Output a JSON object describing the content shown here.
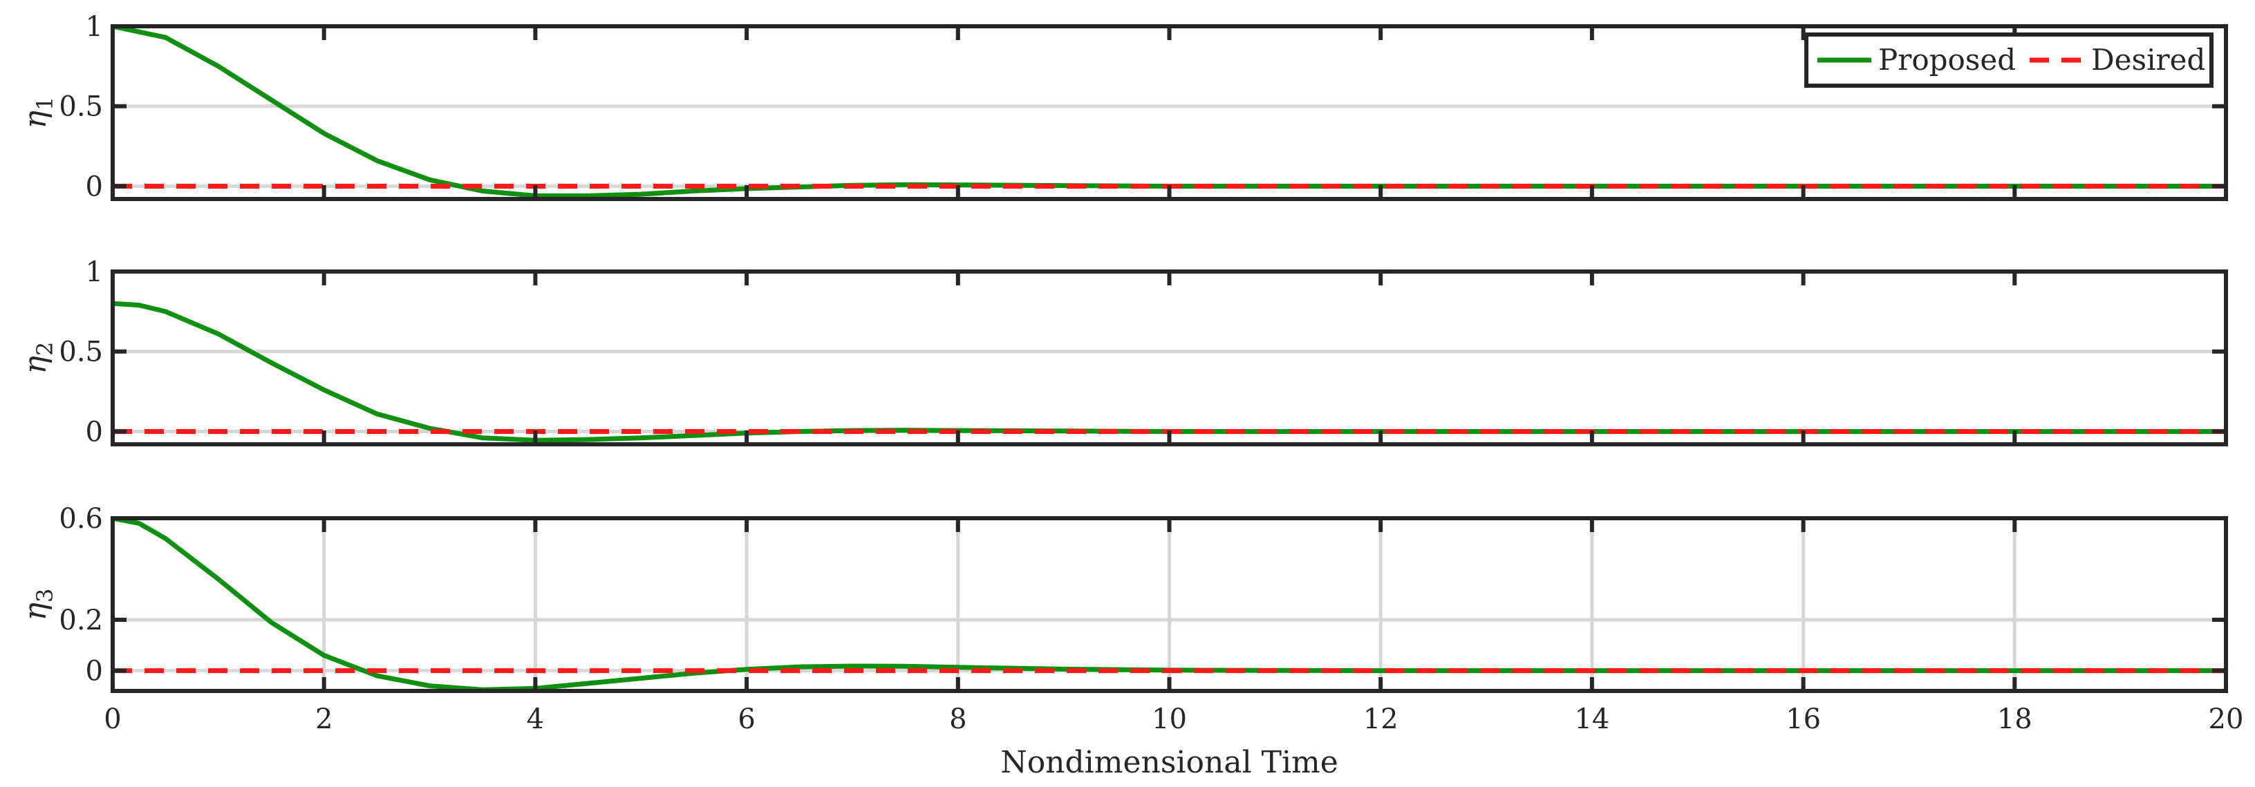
{
  "chart_data": [
    {
      "type": "line",
      "ylabel_base": "η",
      "ylabel_sub": "1",
      "xlim": [
        0,
        20
      ],
      "ylim": [
        -0.08,
        1
      ],
      "yticks": [
        0,
        0.5,
        1
      ],
      "ytick_labels": [
        "0",
        "0.5",
        "1"
      ],
      "xticks": [
        0,
        2,
        4,
        6,
        8,
        10,
        12,
        14,
        16,
        18,
        20
      ],
      "show_xtick_labels": false,
      "grid": {
        "y": true,
        "x": false
      },
      "legend": {
        "position": "top-right",
        "entries": [
          "Proposed",
          "Desired"
        ]
      },
      "series": [
        {
          "name": "Proposed",
          "color": "#109010",
          "style": "solid",
          "x": [
            0,
            0.5,
            1,
            1.5,
            2,
            2.5,
            3,
            3.5,
            4,
            4.5,
            5,
            5.5,
            6,
            6.5,
            7,
            7.5,
            8,
            9,
            10,
            12,
            14,
            16,
            18,
            20
          ],
          "y": [
            1.0,
            0.93,
            0.75,
            0.54,
            0.33,
            0.16,
            0.04,
            -0.03,
            -0.06,
            -0.06,
            -0.05,
            -0.03,
            -0.015,
            -0.005,
            0.005,
            0.01,
            0.008,
            0.004,
            0.0,
            0.0,
            0.0,
            0.0,
            0.0,
            0.0
          ]
        },
        {
          "name": "Desired",
          "color": "#ff1a1a",
          "style": "dashed",
          "x": [
            0,
            20
          ],
          "y": [
            0,
            0
          ]
        }
      ]
    },
    {
      "type": "line",
      "ylabel_base": "η",
      "ylabel_sub": "2",
      "xlim": [
        0,
        20
      ],
      "ylim": [
        -0.08,
        1
      ],
      "yticks": [
        0,
        0.5,
        1
      ],
      "ytick_labels": [
        "0",
        "0.5",
        "1"
      ],
      "xticks": [
        0,
        2,
        4,
        6,
        8,
        10,
        12,
        14,
        16,
        18,
        20
      ],
      "show_xtick_labels": false,
      "grid": {
        "y": true,
        "x": false
      },
      "series": [
        {
          "name": "Proposed",
          "color": "#109010",
          "style": "solid",
          "x": [
            0,
            0.25,
            0.5,
            1,
            1.5,
            2,
            2.5,
            3,
            3.5,
            4,
            4.5,
            5,
            5.5,
            6,
            6.5,
            7,
            7.5,
            8,
            9,
            10,
            12,
            14,
            16,
            18,
            20
          ],
          "y": [
            0.8,
            0.79,
            0.75,
            0.61,
            0.43,
            0.26,
            0.11,
            0.02,
            -0.04,
            -0.055,
            -0.05,
            -0.04,
            -0.025,
            -0.01,
            0.0,
            0.006,
            0.008,
            0.006,
            0.003,
            0.0,
            0.0,
            0.0,
            0.0,
            0.0,
            0.0
          ]
        },
        {
          "name": "Desired",
          "color": "#ff1a1a",
          "style": "dashed",
          "x": [
            0,
            20
          ],
          "y": [
            0,
            0
          ]
        }
      ]
    },
    {
      "type": "line",
      "ylabel_base": "η",
      "ylabel_sub": "3",
      "xlabel": "Nondimensional Time",
      "xlim": [
        0,
        20
      ],
      "ylim": [
        -0.08,
        0.6
      ],
      "yticks": [
        0,
        0.2,
        0.6
      ],
      "ytick_labels": [
        "0",
        "0.2",
        "0.6"
      ],
      "xticks": [
        0,
        2,
        4,
        6,
        8,
        10,
        12,
        14,
        16,
        18,
        20
      ],
      "xtick_labels": [
        "0",
        "2",
        "4",
        "6",
        "8",
        "10",
        "12",
        "14",
        "16",
        "18",
        "20"
      ],
      "show_xtick_labels": true,
      "grid": {
        "y": true,
        "x": true
      },
      "series": [
        {
          "name": "Proposed",
          "color": "#109010",
          "style": "solid",
          "x": [
            0,
            0.25,
            0.5,
            1,
            1.5,
            2,
            2.5,
            3,
            3.5,
            4,
            4.5,
            5,
            5.5,
            6,
            6.5,
            7,
            7.5,
            8,
            9,
            10,
            12,
            14,
            16,
            18,
            20
          ],
          "y": [
            0.6,
            0.58,
            0.52,
            0.36,
            0.19,
            0.06,
            -0.02,
            -0.06,
            -0.075,
            -0.07,
            -0.05,
            -0.03,
            -0.01,
            0.005,
            0.015,
            0.018,
            0.017,
            0.013,
            0.006,
            0.002,
            0.0,
            0.0,
            0.0,
            0.0,
            0.0
          ]
        },
        {
          "name": "Desired",
          "color": "#ff1a1a",
          "style": "dashed",
          "x": [
            0,
            20
          ],
          "y": [
            0,
            0
          ]
        }
      ]
    }
  ]
}
